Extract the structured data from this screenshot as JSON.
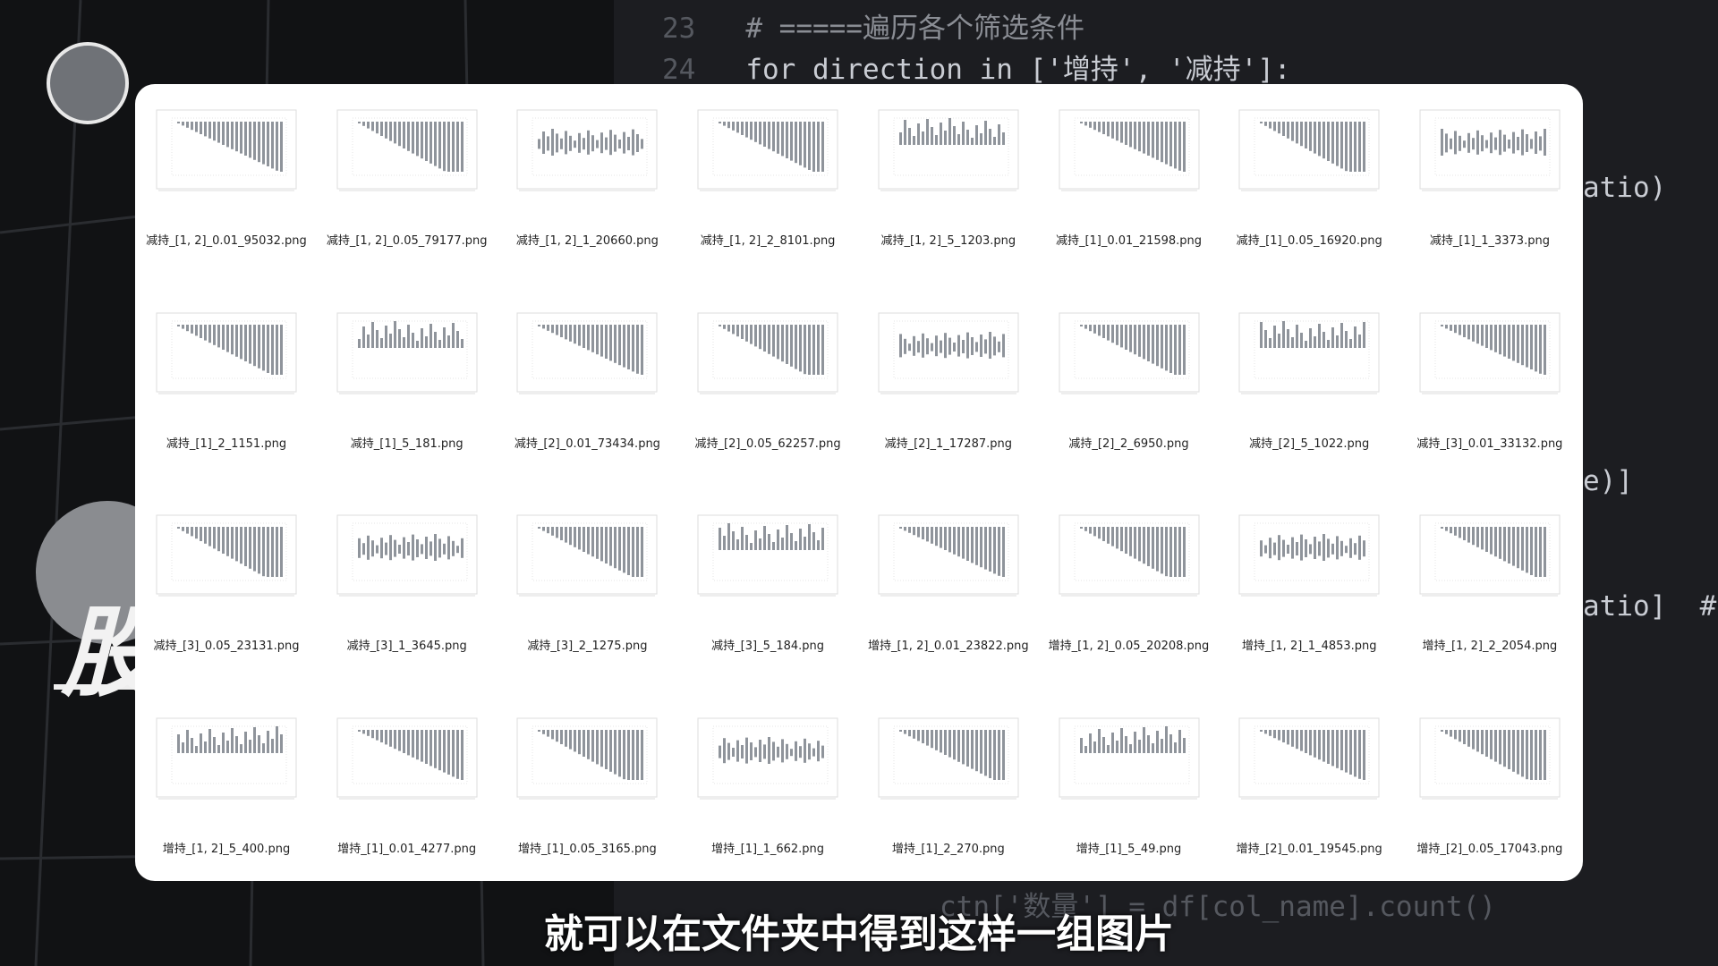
{
  "code": {
    "lines": [
      {
        "number": "23",
        "text": "# =====遍历各个筛选条件"
      },
      {
        "number": "24",
        "text": "for direction in ['增持', '减持']:"
      }
    ],
    "fragments": [
      "atio)",
      "e)]",
      "atio]  #",
      "ctn['数量'] = df[col_name].count()"
    ]
  },
  "logo_text": "股",
  "files": [
    "减持_[1, 2]_0.01_95032.png",
    "减持_[1, 2]_0.05_79177.png",
    "减持_[1, 2]_1_20660.png",
    "减持_[1, 2]_2_8101.png",
    "减持_[1, 2]_5_1203.png",
    "减持_[1]_0.01_21598.png",
    "减持_[1]_0.05_16920.png",
    "减持_[1]_1_3373.png",
    "减持_[1]_2_1151.png",
    "减持_[1]_5_181.png",
    "减持_[2]_0.01_73434.png",
    "减持_[2]_0.05_62257.png",
    "减持_[2]_1_17287.png",
    "减持_[2]_2_6950.png",
    "减持_[2]_5_1022.png",
    "减持_[3]_0.01_33132.png",
    "减持_[3]_0.05_23131.png",
    "减持_[3]_1_3645.png",
    "减持_[3]_2_1275.png",
    "减持_[3]_5_184.png",
    "增持_[1, 2]_0.01_23822.png",
    "增持_[1, 2]_0.05_20208.png",
    "增持_[1, 2]_1_4853.png",
    "增持_[1, 2]_2_2054.png",
    "增持_[1, 2]_5_400.png",
    "增持_[1]_0.01_4277.png",
    "增持_[1]_0.05_3165.png",
    "增持_[1]_1_662.png",
    "增持_[1]_2_270.png",
    "增持_[1]_5_49.png",
    "增持_[2]_0.01_19545.png",
    "增持_[2]_0.05_17043.png"
  ],
  "subtitle": "就可以在文件夹中得到这样一组图片"
}
